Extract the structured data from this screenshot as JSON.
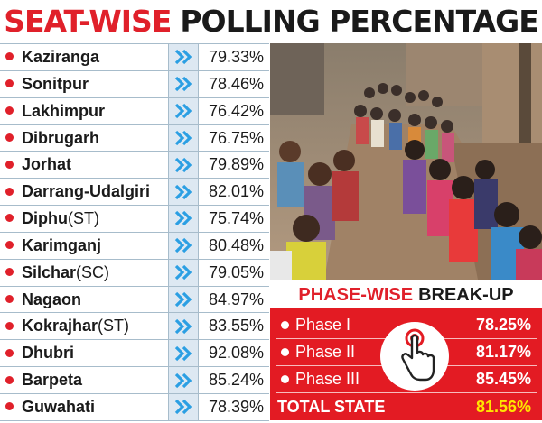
{
  "headline": {
    "part1": "SEAT-WISE",
    "part2": "POLLING PERCENTAGE"
  },
  "seats": [
    {
      "name": "Kaziranga",
      "suffix": "",
      "percent": "79.33%"
    },
    {
      "name": "Sonitpur",
      "suffix": "",
      "percent": "78.46%"
    },
    {
      "name": "Lakhimpur",
      "suffix": "",
      "percent": "76.42%"
    },
    {
      "name": "Dibrugarh",
      "suffix": "",
      "percent": "76.75%"
    },
    {
      "name": "Jorhat",
      "suffix": "",
      "percent": "79.89%"
    },
    {
      "name": "Darrang-Udalgiri",
      "suffix": "",
      "percent": "82.01%"
    },
    {
      "name": "Diphu",
      "suffix": "(ST)",
      "percent": "75.74%"
    },
    {
      "name": "Karimganj",
      "suffix": "",
      "percent": "80.48%"
    },
    {
      "name": "Silchar",
      "suffix": "(SC)",
      "percent": "79.05%"
    },
    {
      "name": "Nagaon",
      "suffix": "",
      "percent": "84.97%"
    },
    {
      "name": "Kokrajhar",
      "suffix": "(ST)",
      "percent": "83.55%"
    },
    {
      "name": "Dhubri",
      "suffix": "",
      "percent": "92.08%"
    },
    {
      "name": "Barpeta",
      "suffix": "",
      "percent": "85.24%"
    },
    {
      "name": "Guwahati",
      "suffix": "",
      "percent": "78.39%"
    }
  ],
  "phase_breakup": {
    "title_part1": "PHASE-WISE",
    "title_part2": "BREAK-UP",
    "phases": [
      {
        "name": "Phase I",
        "percent": "78.25%"
      },
      {
        "name": "Phase II",
        "percent": "81.17%"
      },
      {
        "name": "Phase III",
        "percent": "85.45%"
      }
    ],
    "total_label": "TOTAL STATE",
    "total_percent": "81.56%"
  },
  "icons": {
    "row_bullet": "red-dot-bullet-icon",
    "row_arrow": "double-chevron-right-icon",
    "phase_icon": "hand-pressing-vote-button-icon"
  },
  "colors": {
    "accent_red": "#e31b23",
    "arrow_blue": "#2b9fe3",
    "arrow_cell_bg": "#dde8f2",
    "total_yellow": "#ffe500",
    "text_dark": "#1a1a1a"
  }
}
